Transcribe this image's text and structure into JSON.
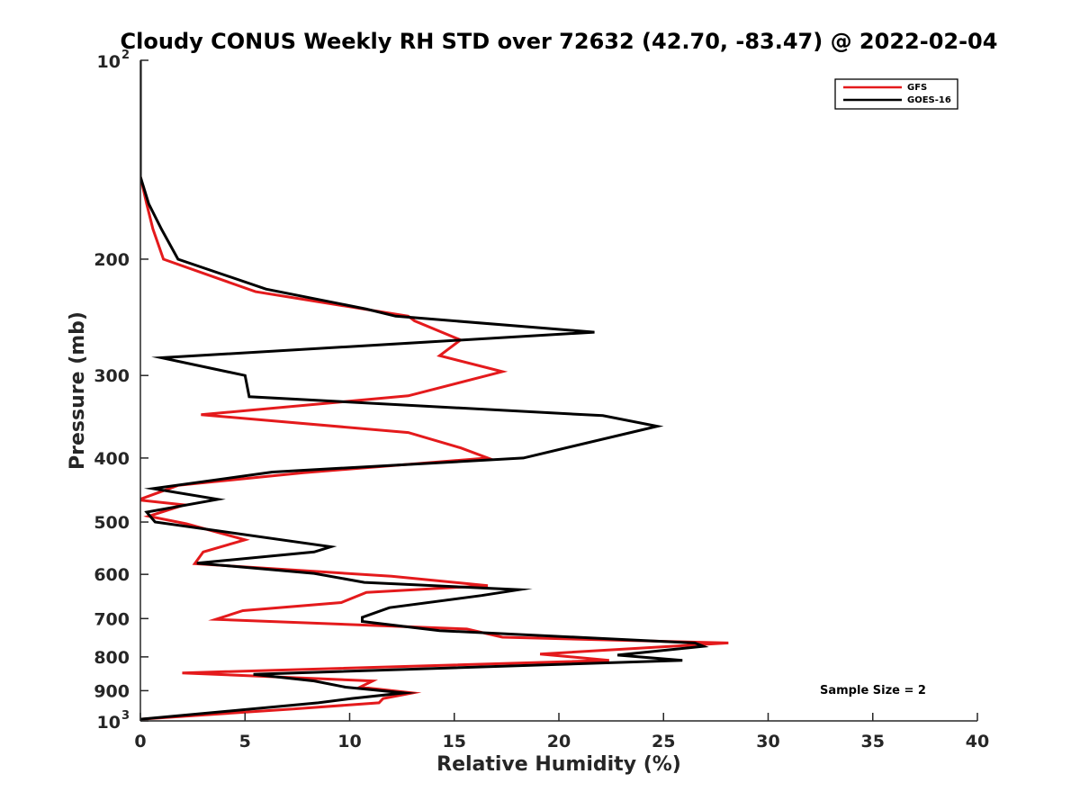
{
  "chart_data": {
    "type": "line",
    "title": "Cloudy CONUS Weekly RH STD over 72632 (42.70, -83.47) @ 2022-02-04",
    "xlabel": "Relative Humidity (%)",
    "ylabel": "Pressure (mb)",
    "xlim": [
      0,
      40
    ],
    "ylim": [
      100,
      1000
    ],
    "y_scale": "log",
    "y_reversed": true,
    "x_ticks": [
      "0",
      "5",
      "10",
      "15",
      "20",
      "25",
      "30",
      "35",
      "40"
    ],
    "y_ticks": [
      {
        "value": 100,
        "base": "10",
        "sup": "2"
      },
      {
        "value": 200,
        "base": "200",
        "sup": ""
      },
      {
        "value": 300,
        "base": "300",
        "sup": ""
      },
      {
        "value": 400,
        "base": "400",
        "sup": ""
      },
      {
        "value": 500,
        "base": "500",
        "sup": ""
      },
      {
        "value": 600,
        "base": "600",
        "sup": ""
      },
      {
        "value": 700,
        "base": "700",
        "sup": ""
      },
      {
        "value": 800,
        "base": "800",
        "sup": ""
      },
      {
        "value": 900,
        "base": "900",
        "sup": ""
      },
      {
        "value": 1000,
        "base": "10",
        "sup": "3"
      }
    ],
    "legend_position": "top-right",
    "annotation": "Sample Size = 2",
    "series": [
      {
        "name": "GFS",
        "color": "#e41a1c",
        "points": [
          [
            0.0,
            100
          ],
          [
            0.0,
            150
          ],
          [
            0.3,
            165
          ],
          [
            0.6,
            180
          ],
          [
            1.1,
            200
          ],
          [
            5.5,
            224
          ],
          [
            12.8,
            244
          ],
          [
            13.1,
            248
          ],
          [
            15.3,
            265
          ],
          [
            14.3,
            280
          ],
          [
            17.3,
            296
          ],
          [
            12.8,
            322
          ],
          [
            2.9,
            344
          ],
          [
            12.8,
            366
          ],
          [
            15.3,
            386
          ],
          [
            16.6,
            400
          ],
          [
            7.8,
            421
          ],
          [
            1.8,
            440
          ],
          [
            -0.1,
            463
          ],
          [
            2.1,
            471
          ],
          [
            0.4,
            490
          ],
          [
            2.2,
            503
          ],
          [
            5.0,
            532
          ],
          [
            3.0,
            555
          ],
          [
            2.6,
            578
          ],
          [
            12.0,
            604
          ],
          [
            16.6,
            624
          ],
          [
            10.8,
            639
          ],
          [
            9.6,
            662
          ],
          [
            4.9,
            681
          ],
          [
            3.6,
            702
          ],
          [
            15.6,
            726
          ],
          [
            17.3,
            747
          ],
          [
            28.1,
            762
          ],
          [
            19.1,
            792
          ],
          [
            22.4,
            810
          ],
          [
            2.0,
            846
          ],
          [
            11.1,
            870
          ],
          [
            10.5,
            889
          ],
          [
            13.0,
            907
          ],
          [
            11.6,
            925
          ],
          [
            11.4,
            939
          ],
          [
            7.3,
            959
          ],
          [
            0.0,
            994
          ]
        ]
      },
      {
        "name": "GOES-16",
        "color": "#000000",
        "points": [
          [
            0.0,
            100
          ],
          [
            0.0,
            150
          ],
          [
            0.4,
            165
          ],
          [
            1.0,
            180
          ],
          [
            1.8,
            200
          ],
          [
            6.0,
            222
          ],
          [
            10.8,
            238
          ],
          [
            12.2,
            244
          ],
          [
            21.7,
            258
          ],
          [
            1.0,
            282
          ],
          [
            5.0,
            300
          ],
          [
            5.2,
            323
          ],
          [
            22.1,
            345
          ],
          [
            24.7,
            358
          ],
          [
            18.3,
            400
          ],
          [
            6.3,
            420
          ],
          [
            0.6,
            445
          ],
          [
            3.7,
            462
          ],
          [
            0.3,
            483
          ],
          [
            0.7,
            500
          ],
          [
            9.1,
            545
          ],
          [
            8.3,
            555
          ],
          [
            2.7,
            577
          ],
          [
            8.3,
            598
          ],
          [
            10.7,
            617
          ],
          [
            18.1,
            633
          ],
          [
            16.3,
            646
          ],
          [
            11.9,
            674
          ],
          [
            10.6,
            697
          ],
          [
            10.6,
            707
          ],
          [
            14.3,
            730
          ],
          [
            26.5,
            762
          ],
          [
            26.9,
            771
          ],
          [
            22.8,
            795
          ],
          [
            25.9,
            810
          ],
          [
            5.4,
            850
          ],
          [
            8.3,
            870
          ],
          [
            9.8,
            889
          ],
          [
            12.6,
            907
          ],
          [
            10.1,
            925
          ],
          [
            8.5,
            939
          ],
          [
            0.0,
            994
          ]
        ]
      }
    ]
  }
}
